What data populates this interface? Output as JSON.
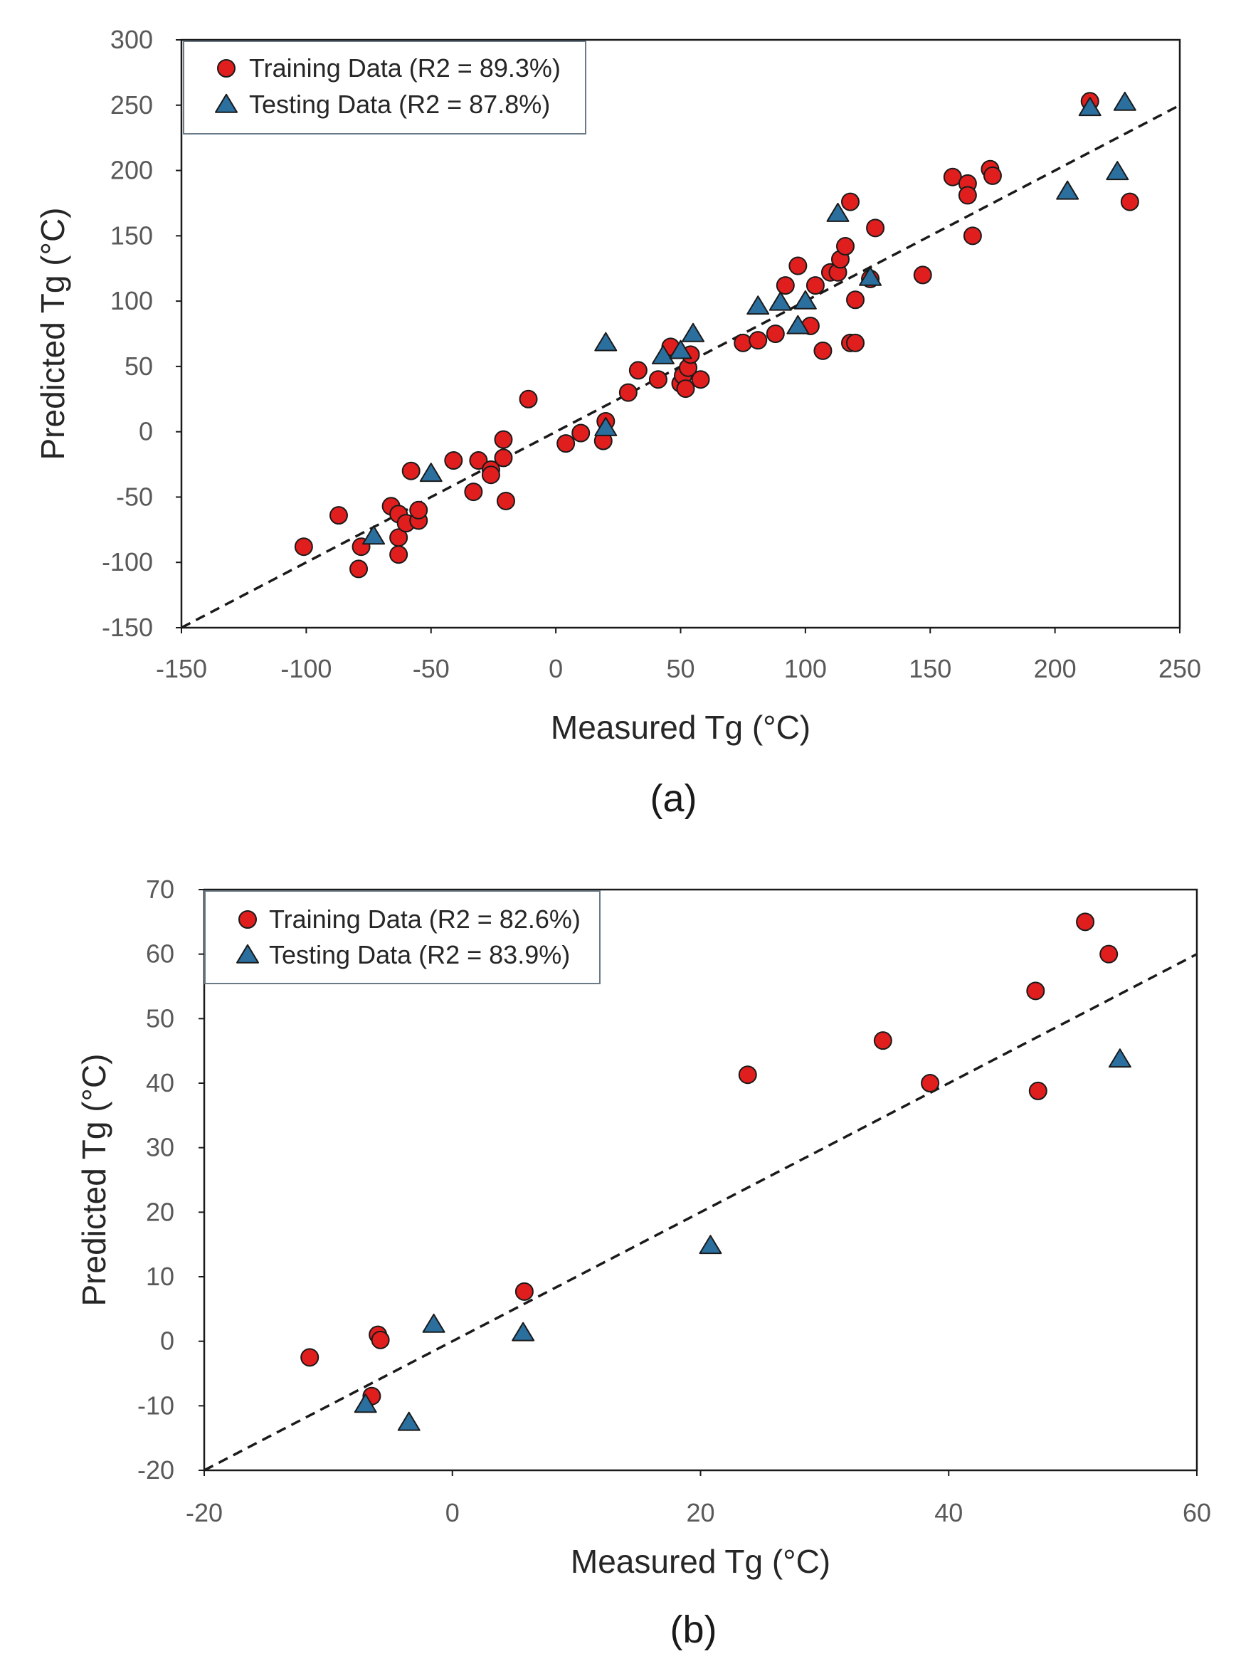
{
  "colors": {
    "training": "#e01e1e",
    "testing": "#2a6f9e",
    "marker_edge": "#1a1a1a",
    "axis": "#1a1a1a",
    "tick_text": "#595959"
  },
  "chart_data": [
    {
      "type": "scatter",
      "panel_label": "(a)",
      "xlabel": "Measured Tg (°C)",
      "ylabel": "Predicted Tg (°C)",
      "xlim": [
        -150,
        250
      ],
      "ylim": [
        -150,
        300
      ],
      "x_ticks": [
        "-150",
        "-100",
        "-50",
        "0",
        "50",
        "100",
        "150",
        "200",
        "250"
      ],
      "y_ticks": [
        "300",
        "250",
        "200",
        "150",
        "100",
        "50",
        "0",
        "-50",
        "-100",
        "-150"
      ],
      "grid": false,
      "legend_position": "top-left",
      "reference_line": {
        "label": "1:1 line",
        "from": [
          -150,
          -150
        ],
        "to": [
          250,
          250
        ]
      },
      "series": [
        {
          "name": "Training Data (R2 = 89.3%)",
          "marker": "circle",
          "points": [
            [
              -101,
              -88
            ],
            [
              -87,
              -64
            ],
            [
              -79,
              -105
            ],
            [
              -78,
              -88
            ],
            [
              -66,
              -57
            ],
            [
              -63,
              -63
            ],
            [
              -63,
              -81
            ],
            [
              -63,
              -94
            ],
            [
              -60,
              -70
            ],
            [
              -58,
              -30
            ],
            [
              -55,
              -68
            ],
            [
              -55,
              -60
            ],
            [
              -41,
              -22
            ],
            [
              -33,
              -46
            ],
            [
              -31,
              -22
            ],
            [
              -26,
              -29
            ],
            [
              -26,
              -33
            ],
            [
              -21,
              -20
            ],
            [
              -21,
              -6
            ],
            [
              -20,
              -53
            ],
            [
              -11,
              25
            ],
            [
              4,
              -9
            ],
            [
              10,
              -1
            ],
            [
              19,
              -7
            ],
            [
              20,
              8
            ],
            [
              29,
              30
            ],
            [
              33,
              47
            ],
            [
              41,
              40
            ],
            [
              46,
              65
            ],
            [
              50,
              37
            ],
            [
              51,
              43
            ],
            [
              52,
              33
            ],
            [
              53,
              49
            ],
            [
              54,
              59
            ],
            [
              58,
              40
            ],
            [
              75,
              68
            ],
            [
              81,
              70
            ],
            [
              88,
              75
            ],
            [
              92,
              112
            ],
            [
              97,
              127
            ],
            [
              102,
              81
            ],
            [
              104,
              112
            ],
            [
              107,
              62
            ],
            [
              110,
              122
            ],
            [
              113,
              122
            ],
            [
              114,
              132
            ],
            [
              116,
              142
            ],
            [
              118,
              176
            ],
            [
              118,
              68
            ],
            [
              120,
              68
            ],
            [
              120,
              101
            ],
            [
              126,
              117
            ],
            [
              128,
              156
            ],
            [
              147,
              120
            ],
            [
              159,
              195
            ],
            [
              165,
              190
            ],
            [
              165,
              181
            ],
            [
              167,
              150
            ],
            [
              174,
              201
            ],
            [
              175,
              196
            ],
            [
              214,
              253
            ],
            [
              230,
              176
            ]
          ]
        },
        {
          "name": "Testing Data (R2 = 87.8%)",
          "marker": "triangle",
          "points": [
            [
              -73,
              -80
            ],
            [
              -50,
              -32
            ],
            [
              20,
              68
            ],
            [
              20,
              3
            ],
            [
              43,
              58
            ],
            [
              50,
              62
            ],
            [
              55,
              75
            ],
            [
              81,
              96
            ],
            [
              90,
              99
            ],
            [
              97,
              81
            ],
            [
              100,
              100
            ],
            [
              113,
              167
            ],
            [
              126,
              118
            ],
            [
              205,
              184
            ],
            [
              214,
              248
            ],
            [
              225,
              199
            ],
            [
              228,
              252
            ]
          ]
        }
      ]
    },
    {
      "type": "scatter",
      "panel_label": "(b)",
      "xlabel": "Measured Tg (°C)",
      "ylabel": "Predicted Tg (°C)",
      "xlim": [
        -20,
        60
      ],
      "ylim": [
        -20,
        70
      ],
      "x_ticks": [
        "-20",
        "0",
        "20",
        "40",
        "60"
      ],
      "y_ticks": [
        "70",
        "60",
        "50",
        "40",
        "30",
        "20",
        "10",
        "0",
        "-10",
        "-20"
      ],
      "grid": false,
      "legend_position": "top-left",
      "reference_line": {
        "label": "1:1 line",
        "from": [
          -20,
          -20
        ],
        "to": [
          60,
          60
        ]
      },
      "series": [
        {
          "name": "Training Data (R2 = 82.6%)",
          "marker": "circle",
          "points": [
            [
              -11.5,
              -2.5
            ],
            [
              -6.5,
              -8.5
            ],
            [
              -6,
              1
            ],
            [
              -5.8,
              0.2
            ],
            [
              5.8,
              7.7
            ],
            [
              23.8,
              41.3
            ],
            [
              34.7,
              46.6
            ],
            [
              38.5,
              40
            ],
            [
              47,
              54.3
            ],
            [
              47.2,
              38.8
            ],
            [
              51,
              65
            ],
            [
              52.9,
              60
            ]
          ]
        },
        {
          "name": "Testing Data (R2 = 83.9%)",
          "marker": "triangle",
          "points": [
            [
              -7,
              -9.8
            ],
            [
              -3.5,
              -12.6
            ],
            [
              -1.5,
              2.6
            ],
            [
              5.7,
              1.3
            ],
            [
              20.8,
              14.8
            ],
            [
              53.8,
              43.7
            ]
          ]
        }
      ]
    }
  ]
}
